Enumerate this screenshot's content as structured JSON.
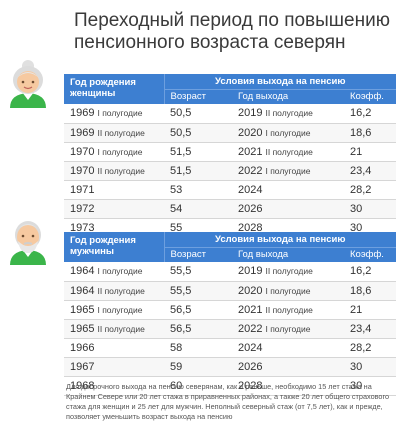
{
  "title": "Переходный период по повышению пенсионного возраста северян",
  "women": {
    "col_birth": "Год рождения женщины",
    "col_group": "Условия выхода на пенсию",
    "col_age": "Возраст",
    "col_year": "Год выхода",
    "col_coef": "Коэфф.",
    "rows": [
      {
        "birth": "1969",
        "birth_half": "I полугодие",
        "age": "50,5",
        "year": "2019",
        "year_half": "II полугодие",
        "coef": "16,2"
      },
      {
        "birth": "1969",
        "birth_half": "II полугодие",
        "age": "50,5",
        "year": "2020",
        "year_half": "I полугодие",
        "coef": "18,6"
      },
      {
        "birth": "1970",
        "birth_half": "I полугодие",
        "age": "51,5",
        "year": "2021",
        "year_half": "II полугодие",
        "coef": "21"
      },
      {
        "birth": "1970",
        "birth_half": "II полугодие",
        "age": "51,5",
        "year": "2022",
        "year_half": "I полугодие",
        "coef": "23,4"
      },
      {
        "birth": "1971",
        "birth_half": "",
        "age": "53",
        "year": "2024",
        "year_half": "",
        "coef": "28,2"
      },
      {
        "birth": "1972",
        "birth_half": "",
        "age": "54",
        "year": "2026",
        "year_half": "",
        "coef": "30"
      },
      {
        "birth": "1973",
        "birth_half": "",
        "age": "55",
        "year": "2028",
        "year_half": "",
        "coef": "30"
      }
    ]
  },
  "men": {
    "col_birth": "Год рождения мужчины",
    "col_group": "Условия выхода на пенсию",
    "col_age": "Возраст",
    "col_year": "Год выхода",
    "col_coef": "Коэфф.",
    "rows": [
      {
        "birth": "1964",
        "birth_half": "I полугодие",
        "age": "55,5",
        "year": "2019",
        "year_half": "II полугодие",
        "coef": "16,2"
      },
      {
        "birth": "1964",
        "birth_half": "II полугодие",
        "age": "55,5",
        "year": "2020",
        "year_half": "I полугодие",
        "coef": "18,6"
      },
      {
        "birth": "1965",
        "birth_half": "I полугодие",
        "age": "56,5",
        "year": "2021",
        "year_half": "II полугодие",
        "coef": "21"
      },
      {
        "birth": "1965",
        "birth_half": "II полугодие",
        "age": "56,5",
        "year": "2022",
        "year_half": "I полугодие",
        "coef": "23,4"
      },
      {
        "birth": "1966",
        "birth_half": "",
        "age": "58",
        "year": "2024",
        "year_half": "",
        "coef": "28,2"
      },
      {
        "birth": "1967",
        "birth_half": "",
        "age": "59",
        "year": "2026",
        "year_half": "",
        "coef": "30"
      },
      {
        "birth": "1968",
        "birth_half": "",
        "age": "60",
        "year": "2028",
        "year_half": "",
        "coef": "30"
      }
    ]
  },
  "footnote": "Для досрочного выхода на пенсию северянам, как и раньше, необходимо 15 лет стажа на Крайнем Севере или 20 лет стажа в приравненных районах, а также 20 лет общего страхового стажа для женщин и 25 лет для мужчин. Неполный северный стаж (от 7,5 лет), как и прежде, позволяет уменьшить возраст выхода на пенсию",
  "icons": {
    "woman": "grandmother-avatar-icon",
    "man": "grandfather-avatar-icon"
  },
  "colors": {
    "header": "#3d7fd1",
    "shirt": "#3bb54a"
  }
}
